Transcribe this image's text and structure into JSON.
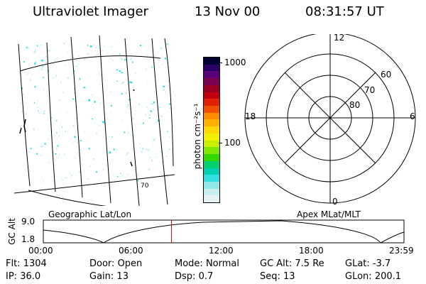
{
  "header": {
    "instrument": "Ultraviolet Imager",
    "date": "13 Nov 00",
    "time": "08:31:57 UT"
  },
  "colorbar": {
    "label": "photon cm⁻²s⁻¹",
    "ticks": [
      "1000",
      "100"
    ],
    "colors": [
      "#000033",
      "#2b0066",
      "#5a007a",
      "#7a0050",
      "#990022",
      "#c00010",
      "#e02000",
      "#f05000",
      "#ff8c00",
      "#ffb000",
      "#ffd800",
      "#f0f000",
      "#c8f000",
      "#80e800",
      "#30d800",
      "#00d070",
      "#00d0b0",
      "#30e0e0",
      "#90e8e8",
      "#c8eeee",
      "#e6f2f2"
    ]
  },
  "polar_plot": {
    "mlt_labels": {
      "top": "12",
      "left": "18",
      "right": "6",
      "bottom": "0"
    },
    "lat_labels": [
      "60",
      "70",
      "80"
    ]
  },
  "geo_panel": {
    "label": "Geographic Lat/Lon",
    "lat_label": "70"
  },
  "apex_panel": {
    "label": "Apex MLat/MLT"
  },
  "orbit_plot": {
    "ylabel": "GC Alt",
    "yticks": [
      "9.0",
      "1.8"
    ],
    "xticks": [
      "00:00",
      "06:00",
      "12:00",
      "18:00",
      "23:59"
    ],
    "current_time_hours": 8.53
  },
  "status": {
    "row1": [
      {
        "key": "flt",
        "label": "Flt:",
        "value": "1304"
      },
      {
        "key": "door",
        "label": "Door:",
        "value": "Open"
      },
      {
        "key": "mode",
        "label": "Mode:",
        "value": "Normal"
      },
      {
        "key": "gcalt",
        "label": "GC Alt:",
        "value": "7.5 Re"
      },
      {
        "key": "glat",
        "label": "GLat:",
        "value": "-3.7"
      }
    ],
    "row2": [
      {
        "key": "ip",
        "label": "IP:",
        "value": "36.0"
      },
      {
        "key": "gain",
        "label": "Gain:",
        "value": "13"
      },
      {
        "key": "dsp",
        "label": "Dsp:",
        "value": "0.7"
      },
      {
        "key": "seq",
        "label": "Seq:",
        "value": "13"
      },
      {
        "key": "glon",
        "label": "GLon:",
        "value": "200.1"
      }
    ]
  }
}
